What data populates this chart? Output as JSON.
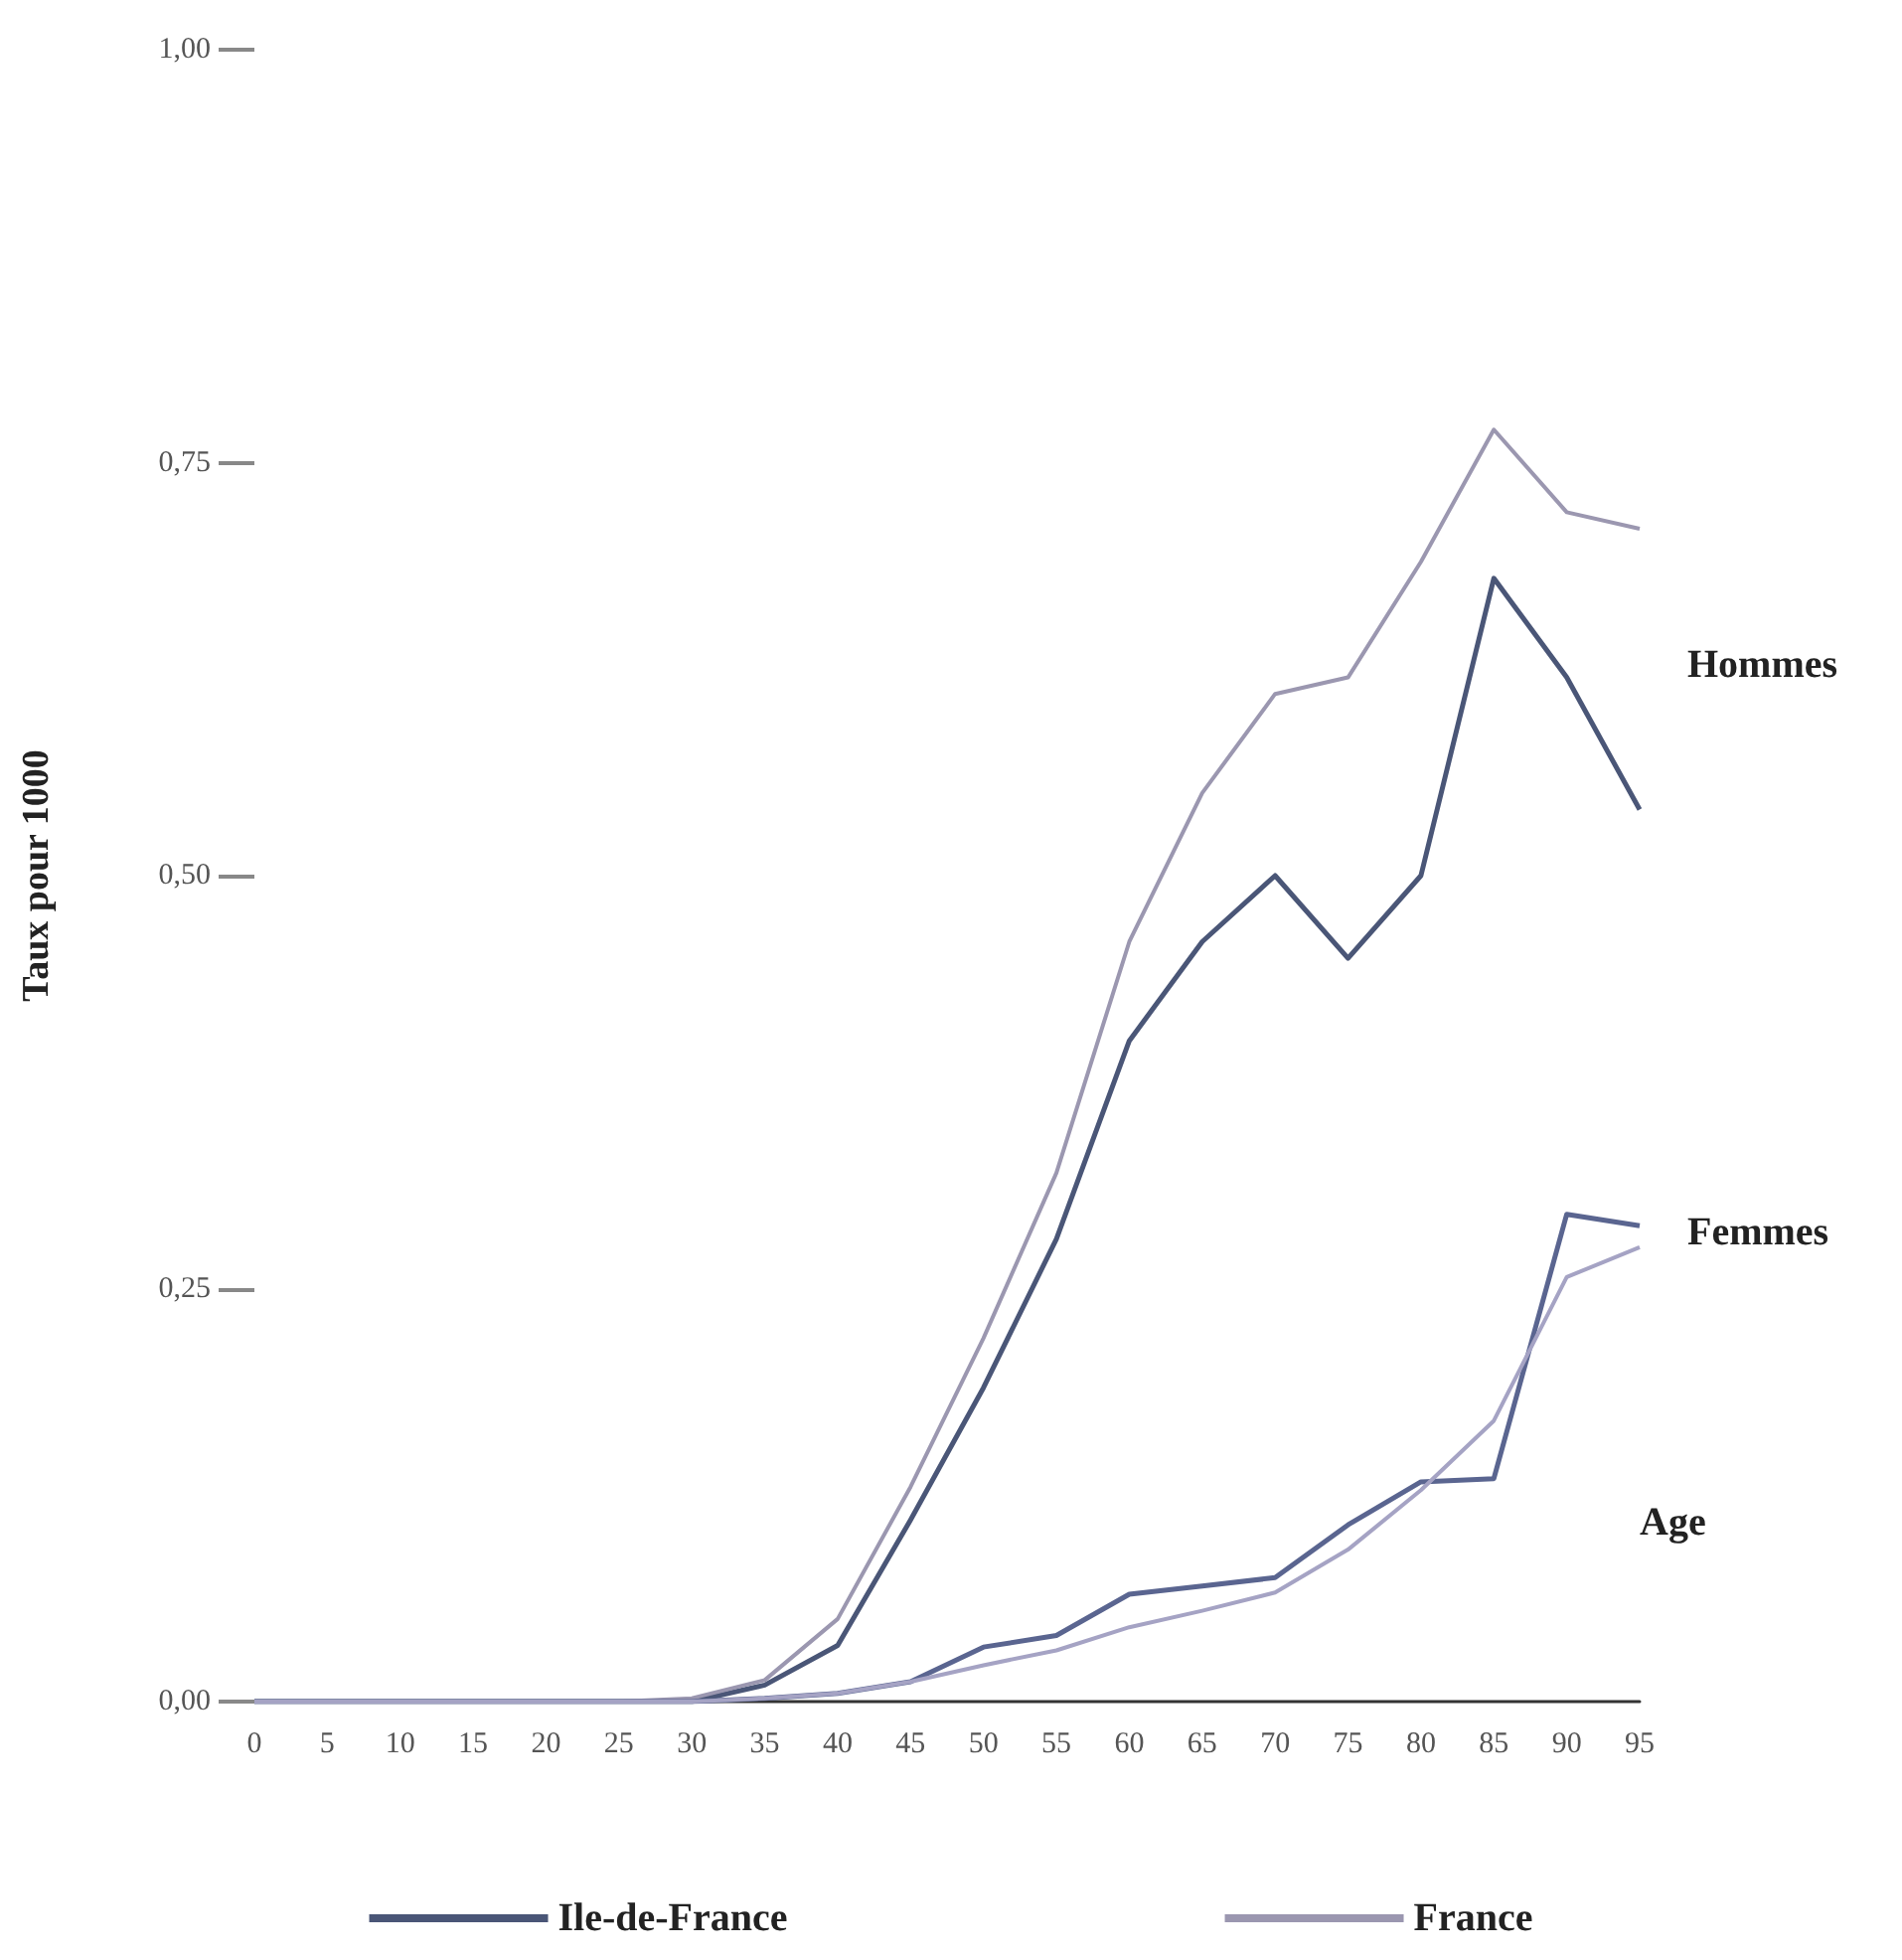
{
  "chart_data": {
    "type": "line",
    "ylabel": "Taux pour 1000",
    "xlabel": "Age",
    "categories": [
      "0",
      "5",
      "10",
      "15",
      "20",
      "25",
      "30",
      "35",
      "40",
      "45",
      "50",
      "55",
      "60",
      "65",
      "70",
      "75",
      "80",
      "85",
      "90",
      "95"
    ],
    "series": [
      {
        "name": "Ile-de-France",
        "color": "#4a5677",
        "values": [
          0,
          0,
          0,
          0,
          0,
          0,
          0,
          0.01,
          0.034,
          0.11,
          0.19,
          0.28,
          0.4,
          0.46,
          0.5,
          0.45,
          0.5,
          0.68,
          0.62,
          0.54
        ]
      },
      {
        "name": "France",
        "color": "#9b97b0",
        "values": [
          0,
          0,
          0,
          0,
          0,
          0,
          0.002,
          0.013,
          0.05,
          0.13,
          0.22,
          0.32,
          0.46,
          0.55,
          0.61,
          0.62,
          0.69,
          0.77,
          0.72,
          0.71
        ]
      },
      {
        "color": "#5a6590",
        "values": [
          0,
          0,
          0,
          0,
          0,
          0,
          0,
          0.002,
          0.005,
          0.012,
          0.033,
          0.04,
          0.065,
          0.07,
          0.075,
          0.107,
          0.133,
          0.135,
          0.295,
          0.288
        ]
      },
      {
        "color": "#a5a3c4",
        "values": [
          0,
          0,
          0,
          0,
          0,
          0,
          0,
          0.002,
          0.005,
          0.012,
          0.022,
          0.031,
          0.045,
          0.055,
          0.066,
          0.092,
          0.128,
          0.17,
          0.257,
          0.275
        ]
      }
    ],
    "ylim": [
      0,
      1
    ],
    "yticks": [
      {
        "value": 0,
        "label": "0,00"
      },
      {
        "value": 0.25,
        "label": "0,25"
      },
      {
        "value": 0.5,
        "label": "0,50"
      },
      {
        "value": 0.75,
        "label": "0,75"
      },
      {
        "value": 1,
        "label": "1,00"
      }
    ],
    "annotations": [
      "Hommes",
      "Femmes"
    ],
    "grid": false,
    "legend": "bottom",
    "marker": "none",
    "line_style": "solid"
  }
}
